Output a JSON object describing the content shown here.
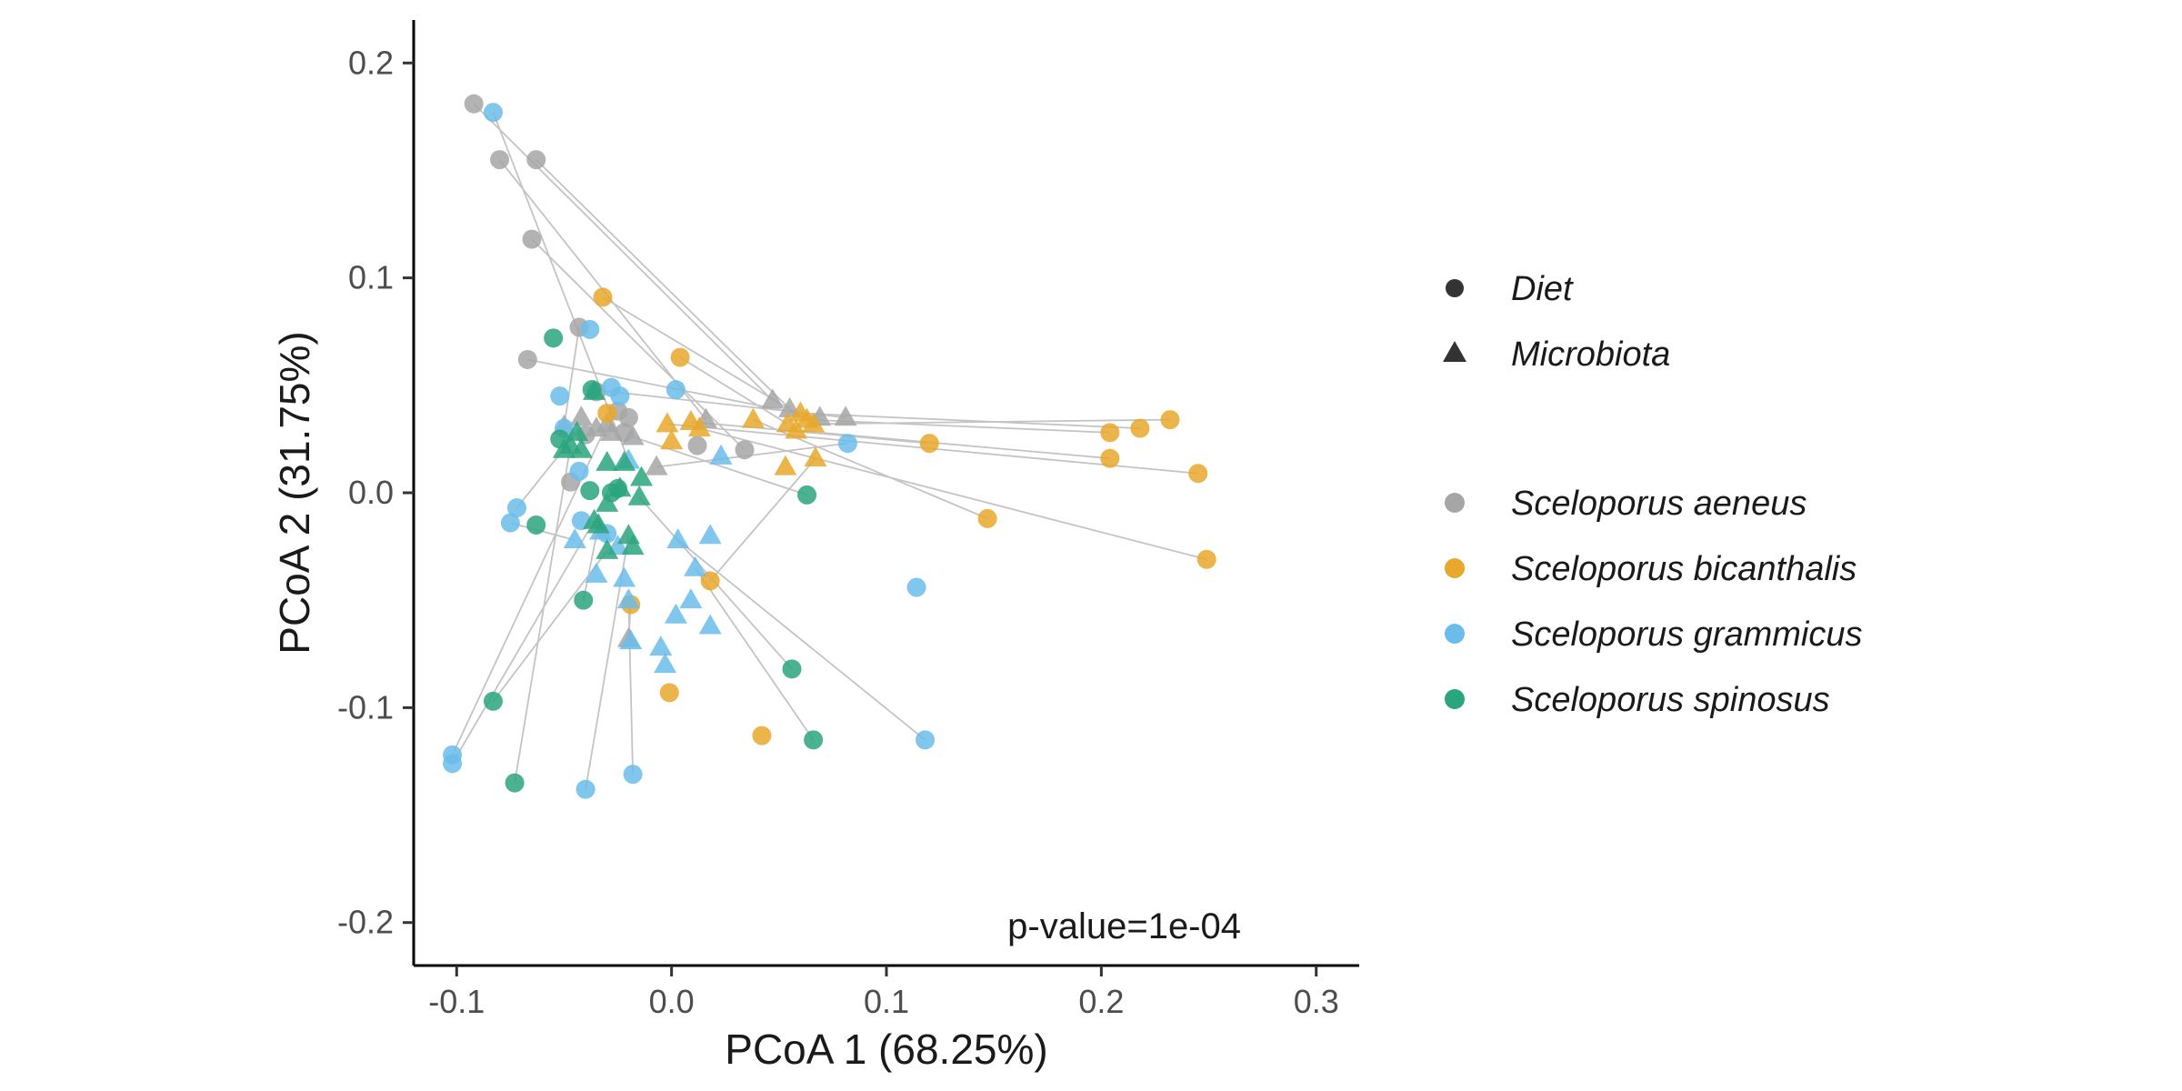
{
  "chart_data": {
    "type": "scatter",
    "xlabel": "PCoA 1 (68.25%)",
    "ylabel": "PCoA 2 (31.75%)",
    "xlim": [
      -0.12,
      0.32
    ],
    "ylim": [
      -0.22,
      0.22
    ],
    "x_ticks": [
      -0.1,
      0.0,
      0.1,
      0.2,
      0.3
    ],
    "x_tick_labels": [
      "-0.1",
      "0.0",
      "0.1",
      "0.2",
      "0.3"
    ],
    "y_ticks": [
      -0.2,
      -0.1,
      0.0,
      0.1,
      0.2
    ],
    "y_tick_labels": [
      "-0.2",
      "-0.1",
      "0.0",
      "0.1",
      "0.2"
    ],
    "grid": false,
    "annotation": "p-value=1e-04",
    "legend_position": "right",
    "legend": {
      "shapes": [
        {
          "label": "Diet",
          "shape": "circle"
        },
        {
          "label": "Microbiota",
          "shape": "triangle"
        }
      ],
      "species": [
        {
          "label": "Sceloporus aeneus",
          "color": "#a6a6a6"
        },
        {
          "label": "Sceloporus bicanthalis",
          "color": "#e7a82b"
        },
        {
          "label": "Sceloporus grammicus",
          "color": "#6bbcea"
        },
        {
          "label": "Sceloporus spinosus",
          "color": "#2ba57e"
        }
      ]
    },
    "series": [
      {
        "name": "Sceloporus aeneus",
        "color": "#a6a6a6",
        "diet": [
          [
            -0.092,
            0.181
          ],
          [
            -0.08,
            0.155
          ],
          [
            -0.063,
            0.155
          ],
          [
            -0.065,
            0.118
          ],
          [
            -0.067,
            0.062
          ],
          [
            -0.043,
            0.077
          ],
          [
            -0.035,
            0.047
          ],
          [
            -0.025,
            0.038
          ],
          [
            -0.02,
            0.035
          ],
          [
            -0.022,
            0.028
          ],
          [
            -0.04,
            0.027
          ],
          [
            -0.047,
            0.005
          ],
          [
            0.012,
            0.022
          ],
          [
            0.034,
            0.02
          ]
        ],
        "microbiota": [
          [
            -0.05,
            0.031
          ],
          [
            -0.042,
            0.035
          ],
          [
            -0.035,
            0.03
          ],
          [
            -0.028,
            0.028
          ],
          [
            -0.03,
            0.032
          ],
          [
            -0.018,
            0.026
          ],
          [
            -0.007,
            0.012
          ],
          [
            0.016,
            0.034
          ],
          [
            0.047,
            0.043
          ],
          [
            0.055,
            0.039
          ],
          [
            0.069,
            0.035
          ],
          [
            0.081,
            0.035
          ],
          [
            -0.02,
            -0.068
          ]
        ]
      },
      {
        "name": "Sceloporus bicanthalis",
        "color": "#e7a82b",
        "diet": [
          [
            -0.032,
            0.091
          ],
          [
            0.004,
            0.063
          ],
          [
            -0.03,
            0.037
          ],
          [
            0.12,
            0.023
          ],
          [
            0.147,
            -0.012
          ],
          [
            0.204,
            0.016
          ],
          [
            0.204,
            0.028
          ],
          [
            0.218,
            0.03
          ],
          [
            0.232,
            0.034
          ],
          [
            0.245,
            0.009
          ],
          [
            0.249,
            -0.031
          ],
          [
            0.018,
            -0.041
          ],
          [
            -0.019,
            -0.052
          ],
          [
            -0.001,
            -0.093
          ],
          [
            0.042,
            -0.113
          ]
        ],
        "microbiota": [
          [
            -0.002,
            0.032
          ],
          [
            0.0,
            0.024
          ],
          [
            0.009,
            0.033
          ],
          [
            0.013,
            0.03
          ],
          [
            0.038,
            0.034
          ],
          [
            0.054,
            0.032
          ],
          [
            0.06,
            0.037
          ],
          [
            0.063,
            0.034
          ],
          [
            0.058,
            0.029
          ],
          [
            0.066,
            0.032
          ],
          [
            0.067,
            0.016
          ],
          [
            0.053,
            0.012
          ]
        ]
      },
      {
        "name": "Sceloporus grammicus",
        "color": "#6bbcea",
        "diet": [
          [
            -0.083,
            0.177
          ],
          [
            -0.038,
            0.076
          ],
          [
            -0.052,
            0.045
          ],
          [
            -0.028,
            0.049
          ],
          [
            -0.024,
            0.045
          ],
          [
            0.002,
            0.048
          ],
          [
            -0.05,
            0.03
          ],
          [
            -0.043,
            0.01
          ],
          [
            0.082,
            0.023
          ],
          [
            -0.072,
            -0.007
          ],
          [
            -0.075,
            -0.014
          ],
          [
            -0.042,
            -0.013
          ],
          [
            -0.03,
            -0.019
          ],
          [
            0.114,
            -0.044
          ],
          [
            -0.102,
            -0.122
          ],
          [
            -0.102,
            -0.126
          ],
          [
            -0.04,
            -0.138
          ],
          [
            -0.018,
            -0.131
          ],
          [
            0.118,
            -0.115
          ]
        ],
        "microbiota": [
          [
            -0.045,
            -0.022
          ],
          [
            -0.033,
            -0.018
          ],
          [
            -0.025,
            -0.025
          ],
          [
            0.003,
            -0.022
          ],
          [
            0.018,
            -0.02
          ],
          [
            -0.035,
            -0.038
          ],
          [
            -0.022,
            -0.04
          ],
          [
            0.011,
            -0.035
          ],
          [
            -0.02,
            -0.05
          ],
          [
            0.009,
            -0.05
          ],
          [
            0.002,
            -0.057
          ],
          [
            0.018,
            -0.062
          ],
          [
            -0.005,
            -0.072
          ],
          [
            -0.003,
            -0.08
          ],
          [
            -0.019,
            -0.069
          ],
          [
            0.023,
            0.017
          ],
          [
            -0.02,
            0.015
          ]
        ]
      },
      {
        "name": "Sceloporus spinosus",
        "color": "#2ba57e",
        "diet": [
          [
            -0.055,
            0.072
          ],
          [
            -0.037,
            0.048
          ],
          [
            -0.052,
            0.025
          ],
          [
            -0.038,
            0.001
          ],
          [
            -0.028,
            0.0
          ],
          [
            -0.025,
            0.002
          ],
          [
            0.063,
            -0.001
          ],
          [
            -0.063,
            -0.015
          ],
          [
            -0.041,
            -0.05
          ],
          [
            0.056,
            -0.082
          ],
          [
            -0.083,
            -0.097
          ],
          [
            0.066,
            -0.115
          ],
          [
            -0.073,
            -0.135
          ]
        ],
        "microbiota": [
          [
            -0.036,
            0.047
          ],
          [
            -0.044,
            0.028
          ],
          [
            -0.047,
            0.022
          ],
          [
            -0.042,
            0.02
          ],
          [
            -0.05,
            0.02
          ],
          [
            -0.03,
            0.014
          ],
          [
            -0.022,
            0.014
          ],
          [
            -0.03,
            -0.005
          ],
          [
            -0.014,
            0.007
          ],
          [
            -0.015,
            -0.002
          ],
          [
            -0.024,
            0.002
          ],
          [
            -0.036,
            -0.013
          ],
          [
            -0.034,
            -0.015
          ],
          [
            -0.02,
            -0.02
          ],
          [
            -0.018,
            -0.025
          ],
          [
            -0.03,
            -0.027
          ]
        ]
      }
    ],
    "connections": [
      [
        [
          -0.092,
          0.181
        ],
        [
          0.047,
          0.043
        ]
      ],
      [
        [
          -0.08,
          0.155
        ],
        [
          0.016,
          0.034
        ]
      ],
      [
        [
          -0.063,
          0.155
        ],
        [
          0.055,
          0.039
        ]
      ],
      [
        [
          -0.065,
          0.118
        ],
        [
          0.034,
          0.02
        ]
      ],
      [
        [
          -0.067,
          0.062
        ],
        [
          0.069,
          0.035
        ]
      ],
      [
        [
          -0.083,
          0.177
        ],
        [
          -0.02,
          0.015
        ]
      ],
      [
        [
          -0.032,
          0.091
        ],
        [
          0.063,
          0.034
        ]
      ],
      [
        [
          0.004,
          0.063
        ],
        [
          0.054,
          0.032
        ]
      ],
      [
        [
          -0.037,
          0.048
        ],
        [
          0.081,
          0.035
        ]
      ],
      [
        [
          0.232,
          0.034
        ],
        [
          0.066,
          0.032
        ]
      ],
      [
        [
          0.218,
          0.03
        ],
        [
          0.06,
          0.037
        ]
      ],
      [
        [
          0.204,
          0.028
        ],
        [
          0.063,
          0.034
        ]
      ],
      [
        [
          0.204,
          0.016
        ],
        [
          0.058,
          0.029
        ]
      ],
      [
        [
          0.245,
          0.009
        ],
        [
          -0.002,
          0.032
        ]
      ],
      [
        [
          0.249,
          -0.031
        ],
        [
          0.013,
          0.03
        ]
      ],
      [
        [
          0.12,
          0.023
        ],
        [
          0.009,
          0.033
        ]
      ],
      [
        [
          0.147,
          -0.012
        ],
        [
          0.038,
          0.034
        ]
      ],
      [
        [
          0.018,
          -0.041
        ],
        [
          0.067,
          0.016
        ]
      ],
      [
        [
          0.082,
          0.023
        ],
        [
          -0.007,
          0.012
        ]
      ],
      [
        [
          0.063,
          -0.001
        ],
        [
          -0.018,
          0.026
        ]
      ],
      [
        [
          -0.102,
          -0.122
        ],
        [
          -0.03,
          0.032
        ]
      ],
      [
        [
          -0.102,
          -0.126
        ],
        [
          -0.036,
          -0.013
        ]
      ],
      [
        [
          -0.083,
          -0.097
        ],
        [
          -0.03,
          -0.027
        ]
      ],
      [
        [
          -0.073,
          -0.135
        ],
        [
          -0.047,
          0.022
        ]
      ],
      [
        [
          -0.04,
          -0.138
        ],
        [
          -0.02,
          -0.02
        ]
      ],
      [
        [
          -0.018,
          -0.131
        ],
        [
          -0.02,
          -0.05
        ]
      ],
      [
        [
          0.118,
          -0.115
        ],
        [
          0.003,
          -0.022
        ]
      ],
      [
        [
          0.066,
          -0.115
        ],
        [
          0.011,
          -0.035
        ]
      ],
      [
        [
          0.056,
          -0.082
        ],
        [
          -0.015,
          -0.002
        ]
      ],
      [
        [
          -0.075,
          -0.014
        ],
        [
          -0.045,
          -0.022
        ]
      ],
      [
        [
          -0.072,
          -0.007
        ],
        [
          -0.044,
          0.028
        ]
      ],
      [
        [
          -0.041,
          -0.05
        ],
        [
          -0.034,
          -0.015
        ]
      ],
      [
        [
          -0.043,
          0.077
        ],
        [
          -0.05,
          0.031
        ]
      ],
      [
        [
          -0.019,
          -0.052
        ],
        [
          -0.02,
          -0.068
        ]
      ]
    ]
  }
}
